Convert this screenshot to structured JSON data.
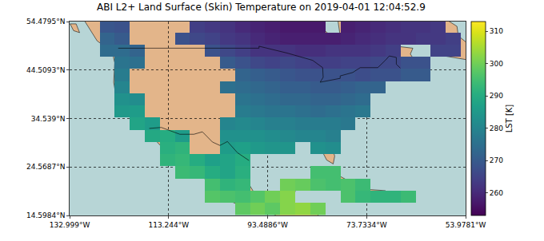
{
  "chart_data": {
    "type": "heatmap",
    "title": "ABI L2+ Land Surface (Skin) Temperature on 2019-04-01 12:04:52.9",
    "color": "Viridis",
    "grid": true,
    "xlim": [
      -132.999,
      -53.9781
    ],
    "ylim": [
      14.5984,
      54.4795
    ],
    "xticks": [
      {
        "value": -132.999,
        "label": "132.999°W"
      },
      {
        "value": -113.244,
        "label": "113.244°W"
      },
      {
        "value": -93.4886,
        "label": "93.4886°W"
      },
      {
        "value": -73.7334,
        "label": "73.7334°W"
      },
      {
        "value": -53.9781,
        "label": "53.9781°W"
      }
    ],
    "yticks": [
      {
        "value": 14.5984,
        "label": "14.5984°N"
      },
      {
        "value": 24.5687,
        "label": "24.5687°N"
      },
      {
        "value": 34.539,
        "label": "34.539°N"
      },
      {
        "value": 44.5093,
        "label": "44.5093°N"
      },
      {
        "value": 54.4795,
        "label": "54.4795°N"
      }
    ],
    "colorbar": {
      "label": "LST [K]",
      "range": [
        253,
        313
      ],
      "ticks": [
        260,
        270,
        280,
        290,
        300,
        310
      ]
    },
    "x": [
      -131.5,
      -128.5,
      -125.5,
      -122.5,
      -119.5,
      -116.5,
      -113.5,
      -110.5,
      -107.5,
      -104.5,
      -101.5,
      -98.5,
      -95.5,
      -92.5,
      -89.5,
      -86.5,
      -83.5,
      -80.5,
      -77.5,
      -74.5,
      -71.5,
      -68.5,
      -65.5,
      -62.5,
      -59.5,
      -56.5
    ],
    "y": [
      16,
      18.5,
      21,
      23.5,
      26,
      28.5,
      31,
      33.5,
      36,
      38.5,
      41,
      43.5,
      46,
      48.5,
      51,
      53.5
    ],
    "z": [
      [
        null,
        null,
        null,
        null,
        null,
        null,
        null,
        null,
        null,
        null,
        null,
        298,
        300,
        298,
        302,
        303,
        300,
        null,
        null,
        null,
        null,
        null,
        null,
        null,
        null,
        null
      ],
      [
        null,
        null,
        null,
        null,
        null,
        null,
        null,
        null,
        null,
        297,
        296,
        295,
        297,
        300,
        302,
        null,
        null,
        null,
        296,
        293,
        292,
        292,
        294,
        null,
        null,
        null
      ],
      [
        null,
        null,
        null,
        null,
        null,
        null,
        null,
        null,
        null,
        295,
        292,
        293,
        null,
        null,
        300,
        299,
        296,
        295,
        296,
        294,
        null,
        null,
        null,
        null,
        null,
        null
      ],
      [
        null,
        null,
        null,
        null,
        null,
        null,
        null,
        294,
        293,
        290,
        288,
        291,
        null,
        null,
        null,
        null,
        295,
        295,
        null,
        null,
        null,
        null,
        null,
        null,
        null,
        null
      ],
      [
        null,
        null,
        null,
        null,
        null,
        null,
        292,
        293,
        290,
        287,
        288,
        290,
        null,
        null,
        null,
        null,
        null,
        null,
        null,
        null,
        null,
        null,
        null,
        null,
        null,
        null
      ],
      [
        null,
        null,
        null,
        null,
        null,
        null,
        291,
        292,
        null,
        null,
        286,
        287,
        285,
        284,
        284,
        null,
        283,
        282,
        null,
        null,
        null,
        null,
        null,
        null,
        null,
        null
      ],
      [
        null,
        null,
        null,
        null,
        null,
        289,
        290,
        286,
        null,
        null,
        283,
        283,
        283,
        282,
        281,
        280,
        280,
        279,
        null,
        null,
        null,
        null,
        null,
        null,
        null,
        null
      ],
      [
        null,
        null,
        null,
        null,
        288,
        286,
        null,
        null,
        null,
        null,
        280,
        281,
        280,
        279,
        279,
        278,
        278,
        278,
        277,
        null,
        null,
        null,
        null,
        null,
        null,
        null
      ],
      [
        null,
        null,
        null,
        285,
        286,
        null,
        null,
        null,
        null,
        null,
        null,
        278,
        277,
        276,
        276,
        275,
        274,
        275,
        276,
        277,
        null,
        null,
        null,
        null,
        null,
        null
      ],
      [
        null,
        null,
        null,
        283,
        282,
        null,
        null,
        null,
        null,
        null,
        null,
        276,
        275,
        274,
        273,
        273,
        272,
        272,
        273,
        274,
        null,
        null,
        null,
        null,
        null,
        null
      ],
      [
        null,
        null,
        null,
        280,
        null,
        null,
        null,
        null,
        null,
        null,
        275,
        274,
        273,
        272,
        271,
        271,
        270,
        270,
        271,
        272,
        272,
        null,
        null,
        null,
        null,
        null
      ],
      [
        null,
        null,
        null,
        278,
        null,
        null,
        null,
        null,
        null,
        null,
        null,
        272,
        271,
        270,
        269,
        268,
        268,
        268,
        268,
        267,
        268,
        268,
        270,
        270,
        null,
        null
      ],
      [
        null,
        null,
        null,
        276,
        275,
        null,
        null,
        null,
        null,
        null,
        270,
        268,
        266,
        265,
        266,
        265,
        264,
        264,
        265,
        265,
        266,
        266,
        268,
        268,
        null,
        null
      ],
      [
        null,
        null,
        274,
        274,
        272,
        null,
        null,
        null,
        null,
        268,
        266,
        264,
        262,
        262,
        262,
        261,
        261,
        262,
        262,
        262,
        263,
        264,
        null,
        null,
        265,
        265
      ],
      [
        null,
        null,
        272,
        270,
        null,
        null,
        null,
        268,
        266,
        265,
        263,
        262,
        260,
        259,
        258,
        258,
        258,
        258,
        259,
        260,
        261,
        262,
        262,
        263,
        263,
        264
      ],
      [
        null,
        null,
        269,
        268,
        null,
        null,
        null,
        null,
        264,
        263,
        262,
        260,
        259,
        258,
        257,
        257,
        257,
        null,
        258,
        259,
        260,
        261,
        262,
        262,
        263,
        null
      ]
    ]
  }
}
